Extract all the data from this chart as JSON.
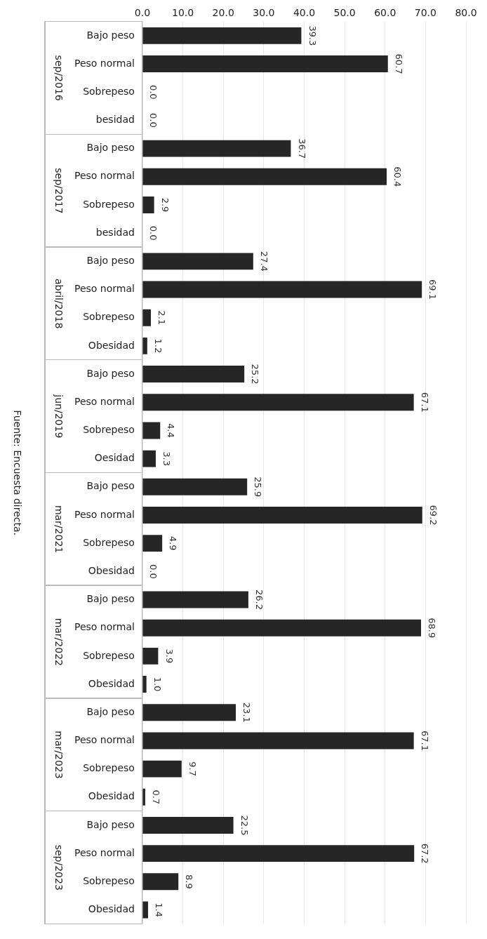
{
  "chart_data": {
    "type": "bar",
    "orientation": "horizontal",
    "categories": [
      "Bajo peso",
      "Peso normal",
      "Sobrepeso",
      "besidad",
      "Bajo peso",
      "Peso normal",
      "Sobrepeso",
      "besidad",
      "Bajo peso",
      "Peso normal",
      "Sobrepeso",
      "Obesidad",
      "Bajo peso",
      "Peso normal",
      "Sobrepeso",
      "Oesidad",
      "Bajo peso",
      "Peso normal",
      "Sobrepeso",
      "Obesidad",
      "Bajo peso",
      "Peso normal",
      "Sobrepeso",
      "Obesidad",
      "Bajo peso",
      "Peso normal",
      "Sobrepeso",
      "Obesidad",
      "Bajo peso",
      "Peso normal",
      "Sobrepeso",
      "Obesidad"
    ],
    "values": [
      39.3,
      60.7,
      0.0,
      0.0,
      36.7,
      60.4,
      2.9,
      0.0,
      27.4,
      69.1,
      2.1,
      1.2,
      25.2,
      67.1,
      4.4,
      3.3,
      25.9,
      69.2,
      4.9,
      0.0,
      26.2,
      68.9,
      3.9,
      1.0,
      23.1,
      67.1,
      9.7,
      0.7,
      22.5,
      67.2,
      8.9,
      1.4
    ],
    "color": "#262626",
    "xlim": [
      0,
      80
    ],
    "xticks": [
      {
        "value": 0,
        "label": "0.0"
      },
      {
        "value": 10,
        "label": "10.0"
      },
      {
        "value": 20,
        "label": "20.0"
      },
      {
        "value": 30,
        "label": "30.0"
      },
      {
        "value": 40,
        "label": "40.0"
      },
      {
        "value": 50,
        "label": "50.0"
      },
      {
        "value": 60,
        "label": "60.0"
      },
      {
        "value": 70,
        "label": "70.0"
      },
      {
        "value": 80,
        "label": "80.0"
      }
    ],
    "value_labels": [
      "39.3",
      "60.7",
      "0.0",
      "0.0",
      "36.7",
      "60.4",
      "2.9",
      "0.0",
      "27.4",
      "69.1",
      "2.1",
      "1.2",
      "25.2",
      "67.1",
      "4.4",
      "3.3",
      "25.9",
      "69.2",
      "4.9",
      "0.0",
      "26.2",
      "68.9",
      "3.9",
      "1.0",
      "23.1",
      "67.1",
      "9.7",
      "0.7",
      "22.5",
      "67.2",
      "8.9",
      "1.4"
    ],
    "grid": "x",
    "legend": false,
    "annotations": [
      "sep/2016",
      "sep/2017",
      "abril/2018",
      "jun/2019",
      "mar/2021",
      "mar/2022",
      "mar/2023",
      "sep/2023",
      "Fuente: Encuesta directa."
    ]
  }
}
